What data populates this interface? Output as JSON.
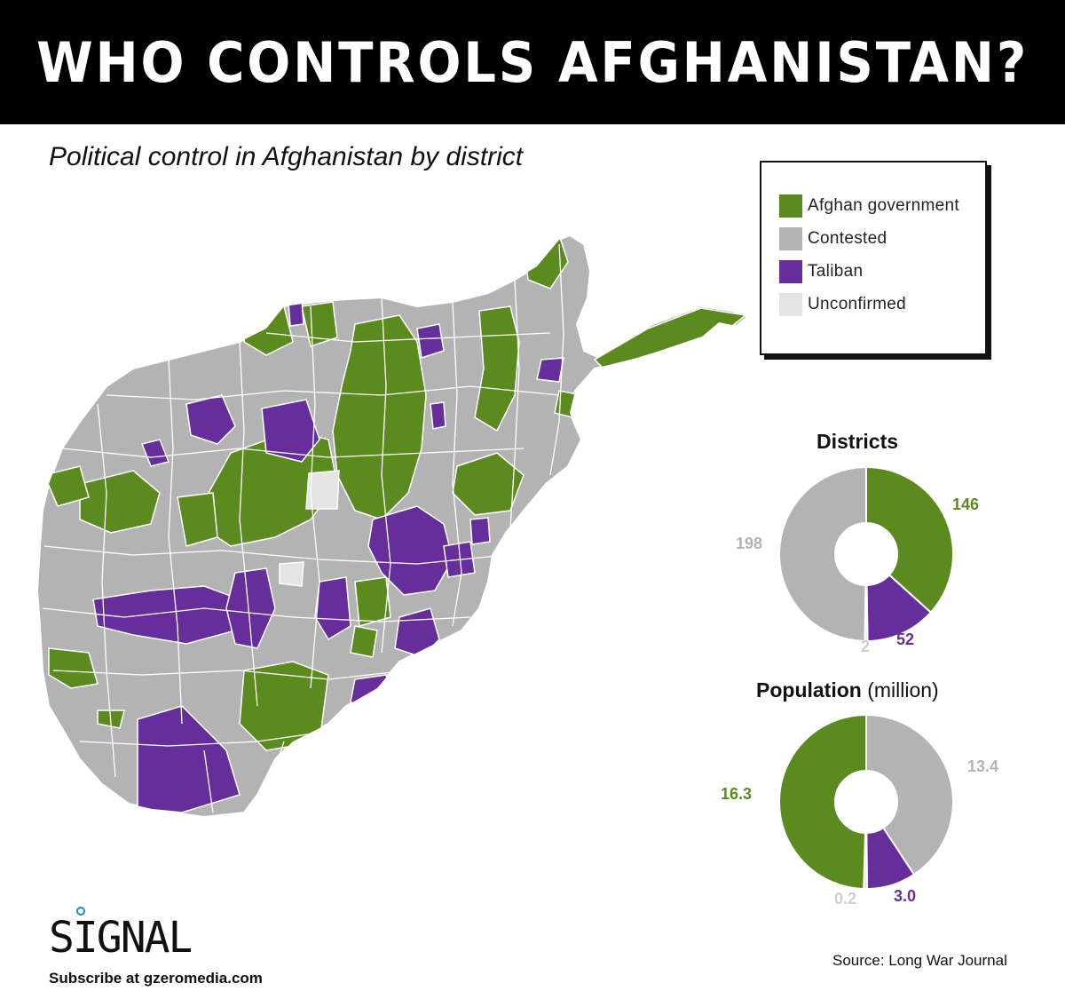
{
  "header": {
    "title": "WHO CONTROLS AFGHANISTAN?"
  },
  "subtitle": "Political control in Afghanistan by district",
  "colors": {
    "government": "#5b8a1e",
    "contested": "#b3b3b3",
    "taliban": "#652e9b",
    "unconfirmed": "#e4e4e4"
  },
  "legend": [
    {
      "label": "Afghan government",
      "color": "#5b8a1e"
    },
    {
      "label": "Contested",
      "color": "#b3b3b3"
    },
    {
      "label": "Taliban",
      "color": "#652e9b"
    },
    {
      "label": "Unconfirmed",
      "color": "#e4e4e4"
    }
  ],
  "chart_data": [
    {
      "type": "pie",
      "title": "Districts",
      "categories": [
        "Afghan government",
        "Taliban",
        "Unconfirmed",
        "Contested"
      ],
      "values": [
        146,
        52,
        2,
        198
      ],
      "labels": [
        "146",
        "52",
        "2",
        "198"
      ]
    },
    {
      "type": "pie",
      "title": "Population",
      "title_suffix": "(million)",
      "categories": [
        "Contested",
        "Taliban",
        "Unconfirmed",
        "Afghan government"
      ],
      "values": [
        13.4,
        3.0,
        0.2,
        16.3
      ],
      "labels": [
        "13.4",
        "3.0",
        "0.2",
        "16.3"
      ]
    }
  ],
  "footer": {
    "logo": "SIGNAL",
    "subscribe": "Subscribe at gzeromedia.com",
    "source": "Source: Long War Journal"
  }
}
